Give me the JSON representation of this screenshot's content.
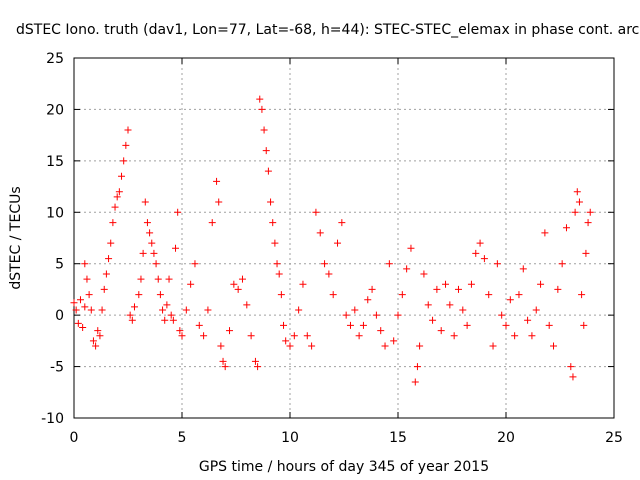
{
  "chart_data": {
    "type": "scatter",
    "title": "dSTEC Iono. truth (dav1, Lon=77, Lat=-68, h=44): STEC-STEC_elemax in phase cont. arc",
    "xlabel": "GPS time / hours of day 345 of year 2015",
    "ylabel": "dSTEC  / TECUs",
    "xlim": [
      0,
      25
    ],
    "ylim": [
      -10,
      25
    ],
    "xticks": [
      0,
      5,
      10,
      15,
      20,
      25
    ],
    "yticks": [
      -10,
      -5,
      0,
      5,
      10,
      15,
      20,
      25
    ],
    "grid": true,
    "marker": "plus",
    "color": "#ff0000",
    "series": [
      {
        "points": [
          [
            0.0,
            1.2
          ],
          [
            0.1,
            0.5
          ],
          [
            0.2,
            -0.8
          ],
          [
            0.3,
            1.5
          ],
          [
            0.4,
            -1.2
          ],
          [
            0.5,
            0.8
          ],
          [
            0.5,
            5.0
          ],
          [
            0.6,
            3.5
          ],
          [
            0.7,
            2.0
          ],
          [
            0.8,
            0.5
          ],
          [
            0.9,
            -2.5
          ],
          [
            1.0,
            -3.0
          ],
          [
            1.1,
            -1.5
          ],
          [
            1.2,
            -2.0
          ],
          [
            1.3,
            0.5
          ],
          [
            1.4,
            2.5
          ],
          [
            1.5,
            4.0
          ],
          [
            1.6,
            5.5
          ],
          [
            1.7,
            7.0
          ],
          [
            1.8,
            9.0
          ],
          [
            1.9,
            10.5
          ],
          [
            2.0,
            11.5
          ],
          [
            2.1,
            12.0
          ],
          [
            2.2,
            13.5
          ],
          [
            2.3,
            15.0
          ],
          [
            2.4,
            16.5
          ],
          [
            2.5,
            18.0
          ],
          [
            2.6,
            0.0
          ],
          [
            2.7,
            -0.5
          ],
          [
            2.8,
            0.8
          ],
          [
            3.0,
            2.0
          ],
          [
            3.1,
            3.5
          ],
          [
            3.2,
            6.0
          ],
          [
            3.3,
            11.0
          ],
          [
            3.4,
            9.0
          ],
          [
            3.5,
            8.0
          ],
          [
            3.6,
            7.0
          ],
          [
            3.7,
            6.0
          ],
          [
            3.8,
            5.0
          ],
          [
            3.9,
            3.5
          ],
          [
            4.0,
            2.0
          ],
          [
            4.1,
            0.5
          ],
          [
            4.2,
            -0.5
          ],
          [
            4.3,
            1.0
          ],
          [
            4.4,
            3.5
          ],
          [
            4.5,
            0.0
          ],
          [
            4.6,
            -0.5
          ],
          [
            4.7,
            6.5
          ],
          [
            4.8,
            10.0
          ],
          [
            4.9,
            -1.5
          ],
          [
            5.0,
            -2.0
          ],
          [
            5.2,
            0.5
          ],
          [
            5.4,
            3.0
          ],
          [
            5.6,
            5.0
          ],
          [
            5.8,
            -1.0
          ],
          [
            6.0,
            -2.0
          ],
          [
            6.2,
            0.5
          ],
          [
            6.4,
            9.0
          ],
          [
            6.6,
            13.0
          ],
          [
            6.7,
            11.0
          ],
          [
            6.8,
            -3.0
          ],
          [
            6.9,
            -4.5
          ],
          [
            7.0,
            -5.0
          ],
          [
            7.2,
            -1.5
          ],
          [
            7.4,
            3.0
          ],
          [
            7.6,
            2.5
          ],
          [
            7.8,
            3.5
          ],
          [
            8.0,
            1.0
          ],
          [
            8.2,
            -2.0
          ],
          [
            8.4,
            -4.5
          ],
          [
            8.5,
            -5.0
          ],
          [
            8.6,
            21.0
          ],
          [
            8.7,
            20.0
          ],
          [
            8.8,
            18.0
          ],
          [
            8.9,
            16.0
          ],
          [
            9.0,
            14.0
          ],
          [
            9.1,
            11.0
          ],
          [
            9.2,
            9.0
          ],
          [
            9.3,
            7.0
          ],
          [
            9.4,
            5.0
          ],
          [
            9.5,
            4.0
          ],
          [
            9.6,
            2.0
          ],
          [
            9.7,
            -1.0
          ],
          [
            9.8,
            -2.5
          ],
          [
            10.0,
            -3.0
          ],
          [
            10.2,
            -2.0
          ],
          [
            10.4,
            0.5
          ],
          [
            10.6,
            3.0
          ],
          [
            10.8,
            -2.0
          ],
          [
            11.0,
            -3.0
          ],
          [
            11.2,
            10.0
          ],
          [
            11.4,
            8.0
          ],
          [
            11.6,
            5.0
          ],
          [
            11.8,
            4.0
          ],
          [
            12.0,
            2.0
          ],
          [
            12.2,
            7.0
          ],
          [
            12.4,
            9.0
          ],
          [
            12.6,
            0.0
          ],
          [
            12.8,
            -1.0
          ],
          [
            13.0,
            0.5
          ],
          [
            13.2,
            -2.0
          ],
          [
            13.4,
            -1.0
          ],
          [
            13.6,
            1.5
          ],
          [
            13.8,
            2.5
          ],
          [
            14.0,
            0.0
          ],
          [
            14.2,
            -1.5
          ],
          [
            14.4,
            -3.0
          ],
          [
            14.6,
            5.0
          ],
          [
            14.8,
            -2.5
          ],
          [
            15.0,
            0.0
          ],
          [
            15.2,
            2.0
          ],
          [
            15.4,
            4.5
          ],
          [
            15.6,
            6.5
          ],
          [
            15.8,
            -6.5
          ],
          [
            15.9,
            -5.0
          ],
          [
            16.0,
            -3.0
          ],
          [
            16.2,
            4.0
          ],
          [
            16.4,
            1.0
          ],
          [
            16.6,
            -0.5
          ],
          [
            16.8,
            2.5
          ],
          [
            17.0,
            -1.5
          ],
          [
            17.2,
            3.0
          ],
          [
            17.4,
            1.0
          ],
          [
            17.6,
            -2.0
          ],
          [
            17.8,
            2.5
          ],
          [
            18.0,
            0.5
          ],
          [
            18.2,
            -1.0
          ],
          [
            18.4,
            3.0
          ],
          [
            18.6,
            6.0
          ],
          [
            18.8,
            7.0
          ],
          [
            19.0,
            5.5
          ],
          [
            19.2,
            2.0
          ],
          [
            19.4,
            -3.0
          ],
          [
            19.6,
            5.0
          ],
          [
            19.8,
            0.0
          ],
          [
            20.0,
            -1.0
          ],
          [
            20.2,
            1.5
          ],
          [
            20.4,
            -2.0
          ],
          [
            20.6,
            2.0
          ],
          [
            20.8,
            4.5
          ],
          [
            21.0,
            -0.5
          ],
          [
            21.2,
            -2.0
          ],
          [
            21.4,
            0.5
          ],
          [
            21.6,
            3.0
          ],
          [
            21.8,
            8.0
          ],
          [
            22.0,
            -1.0
          ],
          [
            22.2,
            -3.0
          ],
          [
            22.4,
            2.5
          ],
          [
            22.6,
            5.0
          ],
          [
            22.8,
            8.5
          ],
          [
            23.0,
            -5.0
          ],
          [
            23.1,
            -6.0
          ],
          [
            23.2,
            10.0
          ],
          [
            23.3,
            12.0
          ],
          [
            23.4,
            11.0
          ],
          [
            23.5,
            2.0
          ],
          [
            23.6,
            -1.0
          ],
          [
            23.7,
            6.0
          ],
          [
            23.8,
            9.0
          ],
          [
            23.9,
            10.0
          ]
        ]
      }
    ]
  }
}
